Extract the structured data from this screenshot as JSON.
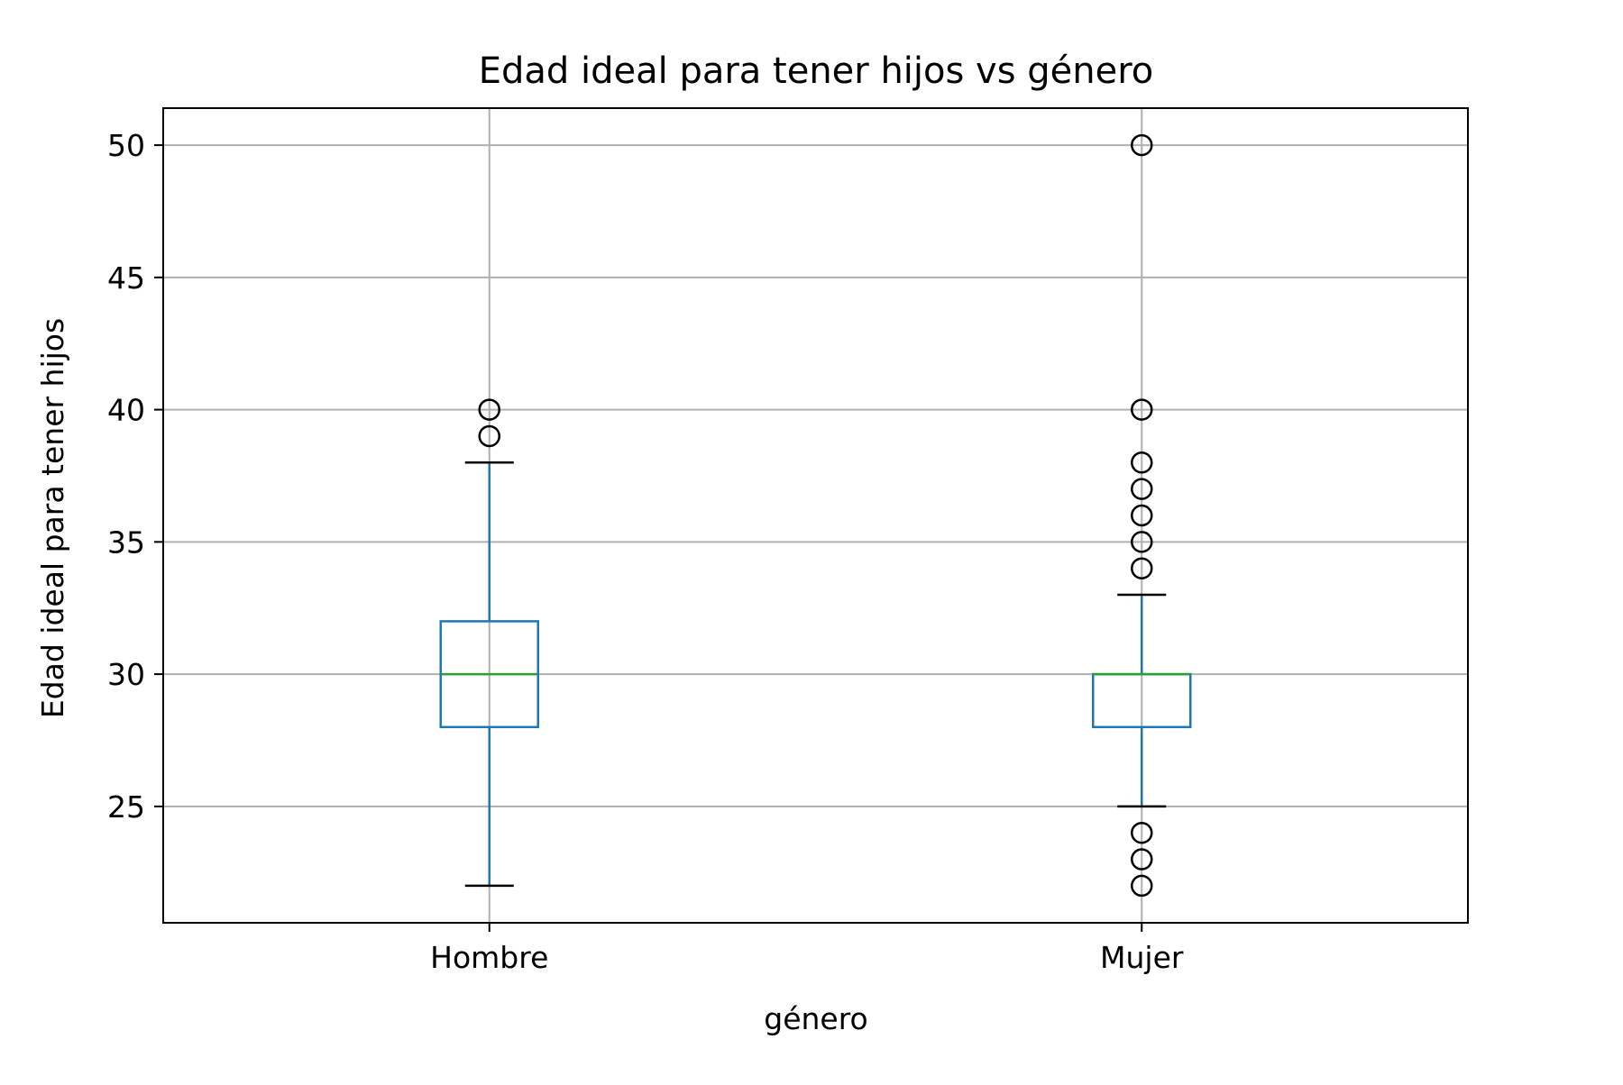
{
  "chart_data": {
    "type": "box",
    "title": "Edad ideal para tener hijos vs género",
    "xlabel": "género",
    "ylabel": "Edad ideal para tener hijos",
    "categories": [
      "Hombre",
      "Mujer"
    ],
    "ylim": [
      20.6,
      51.4
    ],
    "yticks": [
      25,
      30,
      35,
      40,
      45,
      50
    ],
    "grid": true,
    "boxes": [
      {
        "category": "Hombre",
        "whisker_low": 22,
        "q1": 28,
        "median": 30,
        "q3": 32,
        "whisker_high": 38,
        "outliers": [
          39,
          40
        ]
      },
      {
        "category": "Mujer",
        "whisker_low": 25,
        "q1": 28,
        "median": 30,
        "q3": 30,
        "whisker_high": 33,
        "outliers": [
          22,
          23,
          24,
          34,
          35,
          36,
          37,
          38,
          40,
          50
        ]
      }
    ],
    "colors": {
      "box": "#1f77b4",
      "median": "#2ca02c",
      "cap": "#000000",
      "outlier": "#000000",
      "grid": "#b0b0b0",
      "frame": "#000000"
    }
  }
}
